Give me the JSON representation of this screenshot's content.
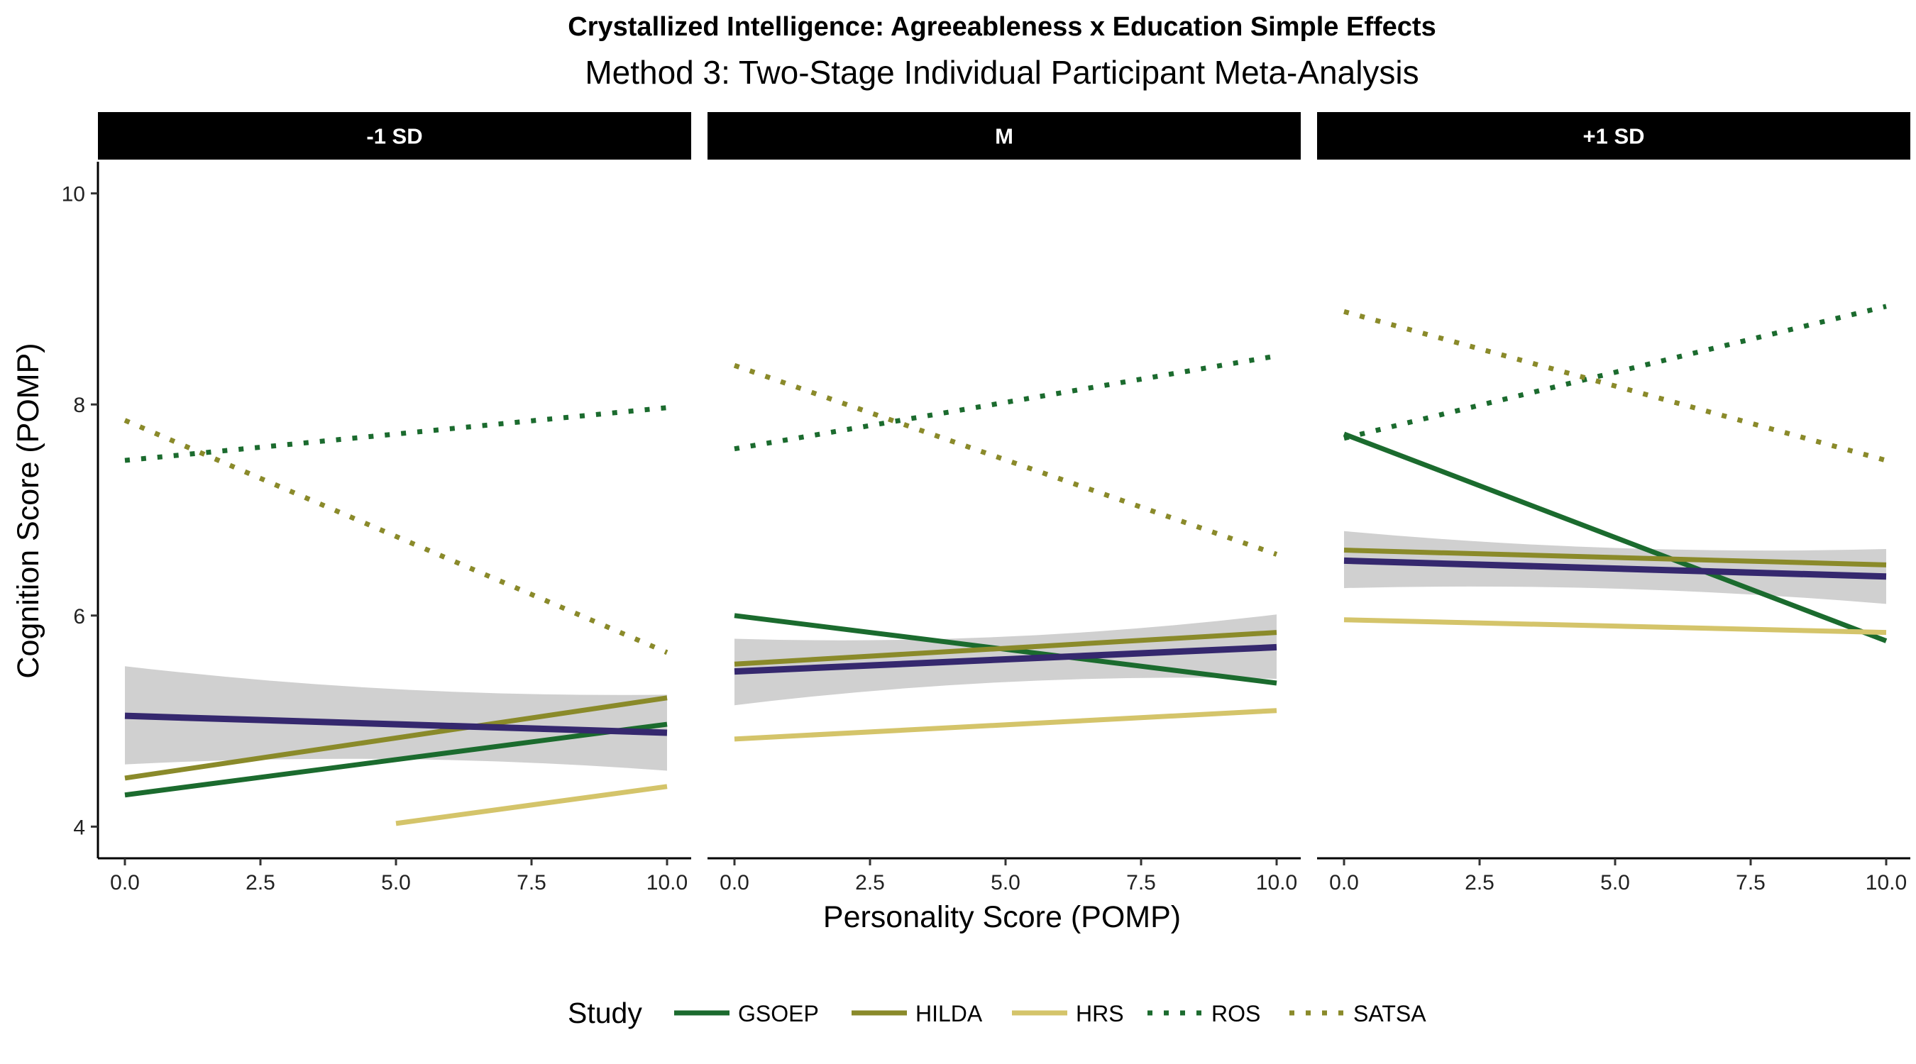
{
  "chart_data": {
    "type": "line",
    "title": "Crystallized Intelligence: Agreeableness x Education Simple Effects",
    "subtitle": "Method 3: Two-Stage Individual Participant Meta-Analysis",
    "xlabel": "Personality Score (POMP)",
    "ylabel": "Cognition Score (POMP)",
    "xlim": [
      0,
      10
    ],
    "ylim": [
      3.7,
      10.3
    ],
    "x_ticks": [
      "0.0",
      "2.5",
      "5.0",
      "7.5",
      "10.0"
    ],
    "y_ticks": [
      "4",
      "6",
      "8",
      "10"
    ],
    "grid": false,
    "legend": {
      "title": "Study",
      "position": "bottom",
      "entries": [
        {
          "name": "GSOEP",
          "color": "#1b6b2e",
          "style": "solid"
        },
        {
          "name": "HILDA",
          "color": "#8a8a2a",
          "style": "solid"
        },
        {
          "name": "HRS",
          "color": "#d4c46a",
          "style": "solid"
        },
        {
          "name": "ROS",
          "color": "#1b6b2e",
          "style": "dotted"
        },
        {
          "name": "SATSA",
          "color": "#8a8a2a",
          "style": "dotted"
        }
      ]
    },
    "colors": {
      "GSOEP": "#1b6b2e",
      "HILDA": "#8a8a2a",
      "HRS": "#d4c46a",
      "ROS": "#1b6b2e",
      "SATSA": "#8a8a2a",
      "overall": "#35286e",
      "ribbon": "#c8c8c8"
    },
    "panels": [
      {
        "label": "-1 SD",
        "series": [
          {
            "study": "ROS",
            "x": [
              0,
              10
            ],
            "y": [
              7.47,
              7.97
            ]
          },
          {
            "study": "SATSA",
            "x": [
              0,
              10
            ],
            "y": [
              7.85,
              5.65
            ]
          },
          {
            "study": "GSOEP",
            "x": [
              0,
              10
            ],
            "y": [
              4.3,
              4.97
            ]
          },
          {
            "study": "HILDA",
            "x": [
              0,
              10
            ],
            "y": [
              4.46,
              5.22
            ]
          },
          {
            "study": "HRS",
            "x": [
              5,
              10
            ],
            "y": [
              4.03,
              4.38
            ]
          }
        ],
        "overall": {
          "x": [
            0,
            10
          ],
          "y": [
            5.05,
            4.89
          ],
          "ribbon_upper": [
            5.52,
            5.25
          ],
          "ribbon_lower": [
            4.59,
            4.53
          ],
          "ribbon_mid": [
            5.18,
            4.76
          ]
        }
      },
      {
        "label": "M",
        "series": [
          {
            "study": "ROS",
            "x": [
              0,
              10
            ],
            "y": [
              7.58,
              8.46
            ]
          },
          {
            "study": "SATSA",
            "x": [
              0,
              10
            ],
            "y": [
              8.37,
              6.58
            ]
          },
          {
            "study": "GSOEP",
            "x": [
              0,
              10
            ],
            "y": [
              6.0,
              5.36
            ]
          },
          {
            "study": "HILDA",
            "x": [
              0,
              10
            ],
            "y": [
              5.54,
              5.84
            ]
          },
          {
            "study": "HRS",
            "x": [
              0,
              10
            ],
            "y": [
              4.83,
              5.1
            ]
          }
        ],
        "overall": {
          "x": [
            0,
            10
          ],
          "y": [
            5.47,
            5.7
          ],
          "ribbon_upper": [
            5.78,
            6.01
          ],
          "ribbon_lower": [
            5.15,
            5.4
          ],
          "ribbon_mid": [
            5.63,
            5.52
          ]
        }
      },
      {
        "label": "+1 SD",
        "series": [
          {
            "study": "ROS",
            "x": [
              0,
              10
            ],
            "y": [
              7.68,
              8.93
            ]
          },
          {
            "study": "SATSA",
            "x": [
              0,
              10
            ],
            "y": [
              8.88,
              7.47
            ]
          },
          {
            "study": "GSOEP",
            "x": [
              0,
              10
            ],
            "y": [
              7.72,
              5.76
            ]
          },
          {
            "study": "HILDA",
            "x": [
              0,
              10
            ],
            "y": [
              6.62,
              6.48
            ]
          },
          {
            "study": "HRS",
            "x": [
              0,
              10
            ],
            "y": [
              5.96,
              5.84
            ]
          }
        ],
        "overall": {
          "x": [
            0,
            10
          ],
          "y": [
            6.52,
            6.37
          ],
          "ribbon_upper": [
            6.8,
            6.63
          ],
          "ribbon_lower": [
            6.26,
            6.11
          ],
          "ribbon_mid": [
            6.48,
            6.38
          ]
        }
      }
    ]
  }
}
